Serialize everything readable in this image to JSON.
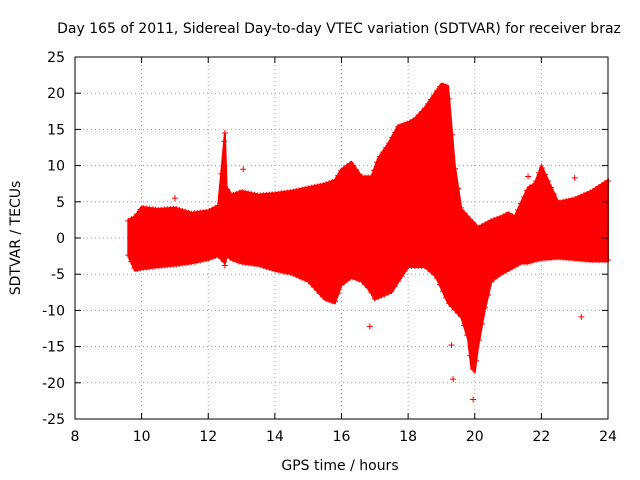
{
  "chart_data": {
    "type": "scatter",
    "title": "Day 165 of 2011, Sidereal Day-to-day VTEC variation (SDTVAR) for receiver braz",
    "xlabel": "GPS time / hours",
    "ylabel": "SDTVAR / TECUs",
    "xlim": [
      8,
      24
    ],
    "ylim": [
      -25,
      25
    ],
    "xticks": [
      8,
      10,
      12,
      14,
      16,
      18,
      20,
      22,
      24
    ],
    "yticks": [
      -25,
      -20,
      -15,
      -10,
      -5,
      0,
      5,
      10,
      15,
      20,
      25
    ],
    "grid": true,
    "marker": "+",
    "color": "#ff0000",
    "envelope": {
      "x": [
        9.6,
        9.8,
        10.0,
        10.5,
        11.0,
        11.5,
        12.0,
        12.3,
        12.5,
        12.55,
        12.7,
        13.0,
        13.5,
        14.0,
        14.5,
        15.0,
        15.5,
        15.8,
        16.0,
        16.3,
        16.6,
        16.9,
        17.1,
        17.4,
        17.7,
        18.0,
        18.2,
        18.5,
        18.8,
        19.0,
        19.2,
        19.4,
        19.6,
        19.8,
        19.9,
        20.0,
        20.1,
        20.3,
        20.5,
        20.8,
        21.0,
        21.2,
        21.4,
        21.6,
        21.8,
        22.0,
        22.5,
        23.0,
        23.5,
        24.0
      ],
      "upper": [
        2.5,
        3.0,
        4.3,
        4.0,
        4.2,
        3.5,
        3.8,
        4.5,
        14.5,
        7.0,
        6.0,
        6.5,
        6.0,
        6.2,
        6.5,
        7.0,
        7.5,
        8.0,
        9.5,
        10.5,
        8.5,
        8.5,
        11.0,
        13.0,
        15.5,
        16.0,
        16.5,
        18.0,
        20.0,
        21.3,
        21.0,
        10.0,
        4.0,
        3.0,
        2.5,
        2.0,
        1.5,
        2.0,
        2.5,
        3.0,
        3.5,
        3.0,
        5.0,
        7.0,
        7.5,
        10.0,
        5.0,
        5.5,
        6.5,
        8.0
      ],
      "lower": [
        -2.5,
        -4.5,
        -4.3,
        -4.0,
        -3.8,
        -3.5,
        -3.0,
        -2.5,
        -3.5,
        -2.5,
        -3.0,
        -3.5,
        -3.8,
        -4.5,
        -5.0,
        -6.0,
        -8.5,
        -9.0,
        -6.5,
        -5.5,
        -6.0,
        -7.5,
        -5.0,
        -4.0,
        -3.5,
        -3.0,
        -3.5,
        -3.0,
        -5.0,
        -7.0,
        -9.0,
        -10.0,
        -11.0,
        -14.0,
        -18.0,
        -18.5,
        -15.0,
        -10.0,
        -6.0,
        -5.0,
        -4.5,
        -4.0,
        -3.5,
        -3.5,
        -3.2,
        -3.0,
        -2.8,
        -3.0,
        -3.2,
        -3.2
      ]
    },
    "secondary_band": {
      "x": [
        16.0,
        16.5,
        17.0,
        17.5,
        18.0,
        18.5,
        19.0,
        19.5,
        20.0
      ],
      "upper": [
        -1.5,
        -1.0,
        -2.0,
        -2.5,
        3.0,
        4.0,
        2.0,
        -2.0,
        -9.5
      ],
      "lower": [
        -3.5,
        -4.5,
        -8.5,
        -7.5,
        -4.0,
        -4.0,
        -6.0,
        -9.0,
        -15.0
      ]
    },
    "outliers": [
      [
        12.5,
        14.5
      ],
      [
        12.5,
        -3.8
      ],
      [
        13.05,
        9.5
      ],
      [
        11.0,
        5.5
      ],
      [
        16.85,
        -12.2
      ],
      [
        19.3,
        -14.8
      ],
      [
        19.35,
        -19.5
      ],
      [
        19.95,
        -22.3
      ],
      [
        23.0,
        8.3
      ],
      [
        23.2,
        -10.9
      ],
      [
        17.3,
        10.5
      ],
      [
        21.6,
        8.5
      ]
    ]
  }
}
